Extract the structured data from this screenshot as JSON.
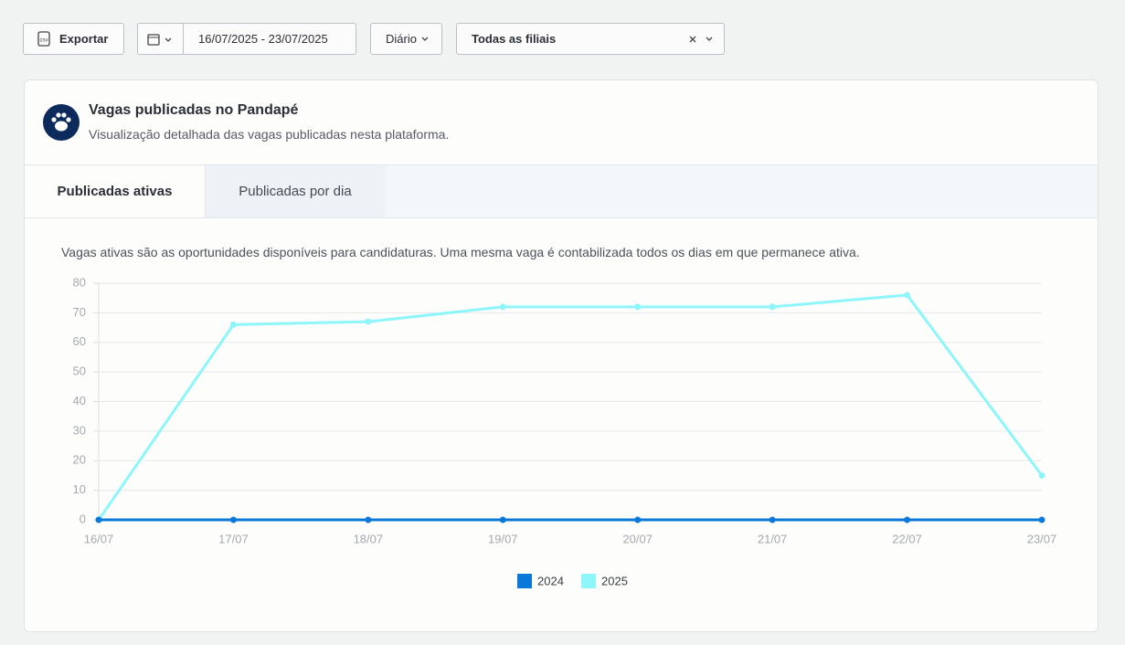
{
  "toolbar": {
    "export": "Exportar",
    "date_range": "16/07/2025 - 23/07/2025",
    "period": "Diário",
    "branch": "Todas as filiais"
  },
  "card": {
    "title": "Vagas publicadas no Pandapé",
    "subtitle": "Visualização detalhada das vagas publicadas nesta plataforma.",
    "tabs": [
      "Publicadas ativas",
      "Publicadas por dia"
    ],
    "description": "Vagas ativas são as oportunidades disponíveis para candidaturas. Uma mesma vaga é contabilizada todos os dias em que permanece ativa."
  },
  "chart_data": {
    "type": "line",
    "categories": [
      "16/07",
      "17/07",
      "18/07",
      "19/07",
      "20/07",
      "21/07",
      "22/07",
      "23/07"
    ],
    "series": [
      {
        "name": "2024",
        "color": "#0a78d8",
        "values": [
          0,
          0,
          0,
          0,
          0,
          0,
          0,
          0
        ]
      },
      {
        "name": "2025",
        "color": "#8ef5fa",
        "values": [
          0,
          66,
          67,
          72,
          72,
          72,
          76,
          15
        ]
      }
    ],
    "ylim": [
      0,
      80
    ],
    "yticks": [
      0,
      10,
      20,
      30,
      40,
      50,
      60,
      70,
      80
    ],
    "grid": true,
    "legend": "bottom"
  }
}
